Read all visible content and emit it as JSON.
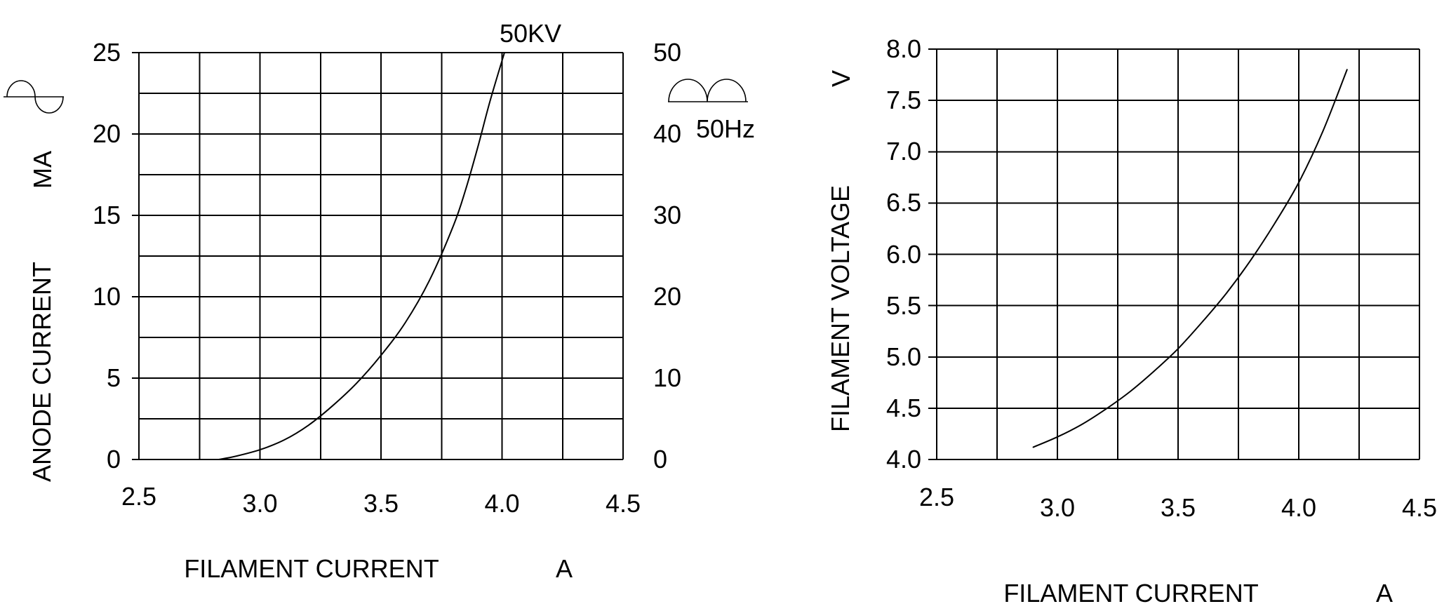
{
  "page": {
    "background": "#ffffff",
    "ink": "#000000",
    "description": "Two x-ray tube characteristic curves: anode current vs filament current at 50KV (full-wave rectified 50Hz), and filament voltage vs filament current"
  },
  "icons": [
    {
      "name": "ac-sine-wave-icon",
      "meaning": "alternating current sine waveform"
    },
    {
      "name": "full-wave-rectified-wave-icon",
      "meaning": "full-wave rectified waveform"
    }
  ],
  "chart_data": [
    {
      "type": "line",
      "title": "",
      "grid": true,
      "x_axis": {
        "label": "FILAMENT CURRENT",
        "unit": "A",
        "min": 2.5,
        "max": 4.5,
        "grid_step": 0.25,
        "tick_values": [
          2.5,
          3.0,
          3.5,
          4.0,
          4.5
        ],
        "tick_labels": [
          "2.5",
          "3.0",
          "3.5",
          "4.0",
          "4.5"
        ]
      },
      "y_axis": {
        "label": "ANODE CURRENT",
        "unit": "MA",
        "side": "left",
        "min": 0,
        "max": 25,
        "grid_step": 2.5,
        "tick_values": [
          0,
          5,
          10,
          15,
          20,
          25
        ],
        "tick_labels": [
          "0",
          "5",
          "10",
          "15",
          "20",
          "25"
        ]
      },
      "y2_axis": {
        "side": "right",
        "min": 0,
        "max": 50,
        "tick_values": [
          0,
          10,
          20,
          30,
          40,
          50
        ],
        "tick_labels": [
          "0",
          "10",
          "20",
          "30",
          "40",
          "50"
        ]
      },
      "annotations": [
        {
          "text": "50KV",
          "meaning": "tube voltage of plotted curve",
          "position": "above curve top"
        },
        {
          "text": "50Hz",
          "meaning": "mains frequency of rectified supply",
          "position": "right of plot beside 40 tick"
        }
      ],
      "series": [
        {
          "name": "50KV",
          "points": [
            [
              2.83,
              0
            ],
            [
              2.9,
              0.2
            ],
            [
              3.0,
              0.6
            ],
            [
              3.1,
              1.2
            ],
            [
              3.2,
              2.1
            ],
            [
              3.3,
              3.3
            ],
            [
              3.4,
              4.7
            ],
            [
              3.5,
              6.4
            ],
            [
              3.6,
              8.4
            ],
            [
              3.7,
              11.0
            ],
            [
              3.8,
              14.4
            ],
            [
              3.85,
              16.6
            ],
            [
              3.9,
              19.2
            ],
            [
              3.95,
              22.0
            ],
            [
              4.01,
              25.0
            ]
          ]
        }
      ]
    },
    {
      "type": "line",
      "title": "",
      "grid": true,
      "x_axis": {
        "label": "FILAMENT CURRENT",
        "unit": "A",
        "min": 2.5,
        "max": 4.5,
        "grid_step": 0.25,
        "tick_values": [
          2.5,
          3.0,
          3.5,
          4.0,
          4.5
        ],
        "tick_labels": [
          "2.5",
          "3.0",
          "3.5",
          "4.0",
          "4.5"
        ]
      },
      "y_axis": {
        "label": "FILAMENT VOLTAGE",
        "unit": "V",
        "side": "left",
        "min": 4.0,
        "max": 8.0,
        "grid_step": 0.5,
        "tick_values": [
          4.0,
          4.5,
          5.0,
          5.5,
          6.0,
          6.5,
          7.0,
          7.5,
          8.0
        ],
        "tick_labels": [
          "4.0",
          "4.5",
          "5.0",
          "5.5",
          "6.0",
          "6.5",
          "7.0",
          "7.5",
          "8.0"
        ]
      },
      "annotations": [],
      "series": [
        {
          "name": "filament voltage",
          "points": [
            [
              2.9,
              4.12
            ],
            [
              3.0,
              4.22
            ],
            [
              3.1,
              4.34
            ],
            [
              3.2,
              4.49
            ],
            [
              3.3,
              4.66
            ],
            [
              3.4,
              4.86
            ],
            [
              3.5,
              5.08
            ],
            [
              3.6,
              5.34
            ],
            [
              3.7,
              5.62
            ],
            [
              3.8,
              5.94
            ],
            [
              3.9,
              6.3
            ],
            [
              4.0,
              6.7
            ],
            [
              4.1,
              7.2
            ],
            [
              4.2,
              7.8
            ]
          ]
        }
      ]
    }
  ]
}
